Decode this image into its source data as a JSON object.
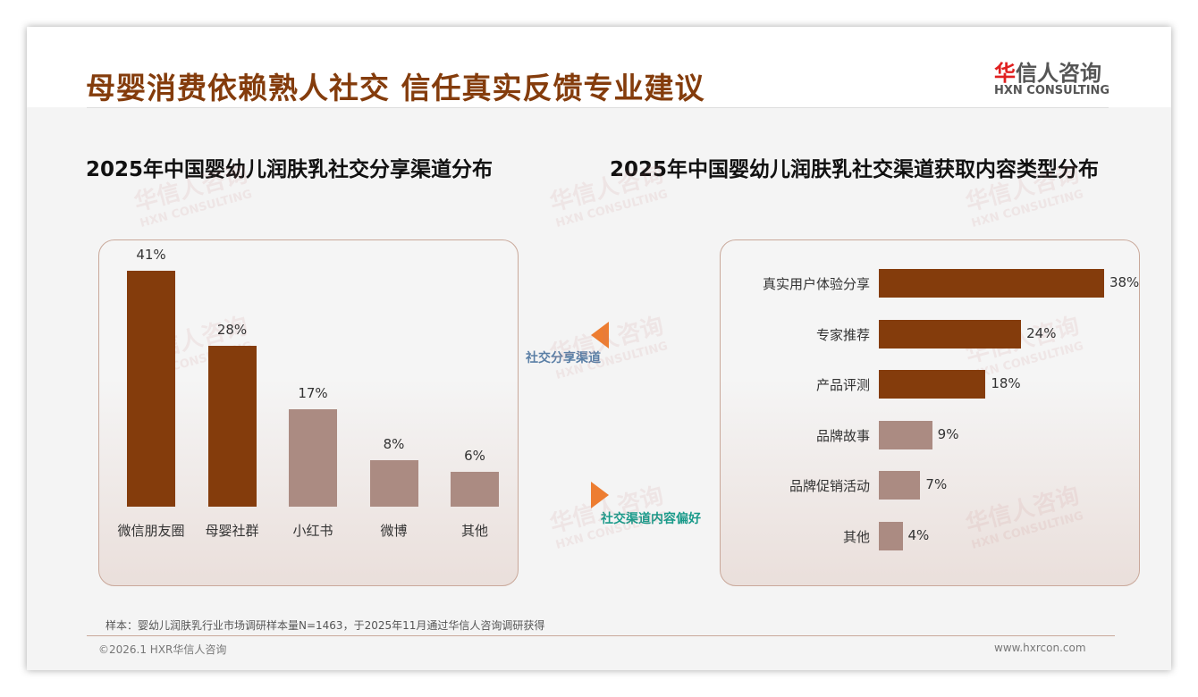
{
  "header": {
    "title": "母婴消费依赖熟人社交 信任真实反馈专业建议",
    "logo_cn": "华信人咨询",
    "logo_en": "HXN CONSULTING"
  },
  "arrows": {
    "left_label": "社交分享渠道",
    "right_label": "社交渠道内容偏好"
  },
  "footer": {
    "note": "样本：婴幼儿润肤乳行业市场调研样本量N=1463，于2025年11月通过华信人咨询调研获得",
    "copyright": "©2026.1 HXR华信人咨询",
    "website": "www.hxrcon.com"
  },
  "colors": {
    "dark": "#843c0c",
    "light": "#ab8b82"
  },
  "chart_data": [
    {
      "type": "bar",
      "title": "2025年中国婴幼儿润肤乳社交分享渠道分布",
      "categories": [
        "微信朋友圈",
        "母婴社群",
        "小红书",
        "微博",
        "其他"
      ],
      "values": [
        41,
        28,
        17,
        8,
        6
      ],
      "labels": [
        "41%",
        "28%",
        "17%",
        "8%",
        "6%"
      ],
      "ylim": [
        0,
        45
      ]
    },
    {
      "type": "bar",
      "orientation": "horizontal",
      "title": "2025年中国婴幼儿润肤乳社交渠道获取内容类型分布",
      "categories": [
        "真实用户体验分享",
        "专家推荐",
        "产品评测",
        "品牌故事",
        "品牌促销活动",
        "其他"
      ],
      "values": [
        38,
        24,
        18,
        9,
        7,
        4
      ],
      "labels": [
        "38%",
        "24%",
        "18%",
        "9%",
        "7%",
        "4%"
      ],
      "xlim": [
        0,
        40
      ]
    }
  ]
}
